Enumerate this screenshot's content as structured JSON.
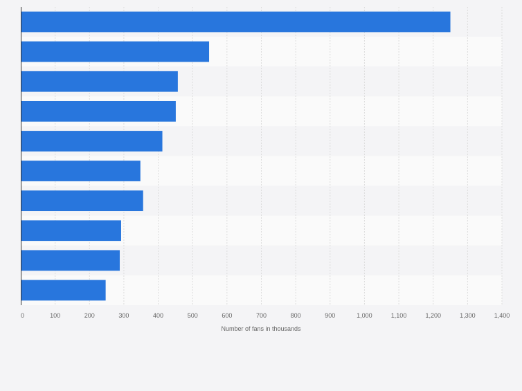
{
  "chart_data": {
    "type": "bar",
    "orientation": "horizontal",
    "categories": [
      "",
      "",
      "",
      "",
      "",
      "",
      "",
      "",
      "",
      ""
    ],
    "values": [
      1250,
      548,
      457,
      451,
      412,
      348,
      356,
      292,
      288,
      247
    ],
    "xlabel": "Number of fans in thousands",
    "ylabel": "",
    "xlim": [
      0,
      1400
    ],
    "ticks": [
      "0",
      "100",
      "200",
      "300",
      "400",
      "500",
      "600",
      "700",
      "800",
      "900",
      "1,000",
      "1,100",
      "1,200",
      "1,300",
      "1,400"
    ],
    "grid": true,
    "bar_color": "#2876dd",
    "band_colors": [
      "#f4f4f6",
      "#fafafa"
    ]
  }
}
